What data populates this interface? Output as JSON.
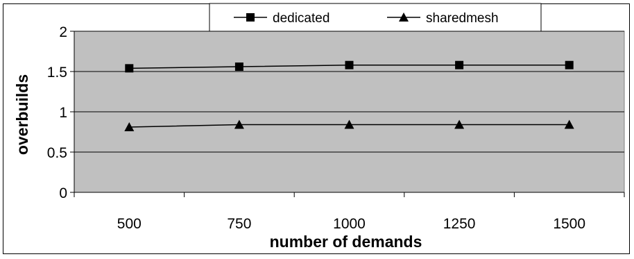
{
  "chart_data": {
    "type": "line",
    "categories": [
      "500",
      "750",
      "1000",
      "1250",
      "1500"
    ],
    "series": [
      {
        "name": "dedicated",
        "marker": "square",
        "values": [
          1.54,
          1.56,
          1.58,
          1.58,
          1.58
        ]
      },
      {
        "name": "sharedmesh",
        "marker": "triangle",
        "values": [
          0.81,
          0.84,
          0.84,
          0.84,
          0.84
        ]
      }
    ],
    "title": "",
    "xlabel": "number of demands",
    "ylabel": "overbuilds",
    "ylim": [
      0,
      2
    ],
    "yticks": [
      "0",
      "0.5",
      "1",
      "1.5",
      "2"
    ],
    "grid": true,
    "legend_position": "top",
    "colors": {
      "plot_background": "#c0c0c0",
      "line": "#000000",
      "gridline": "#000000"
    }
  }
}
